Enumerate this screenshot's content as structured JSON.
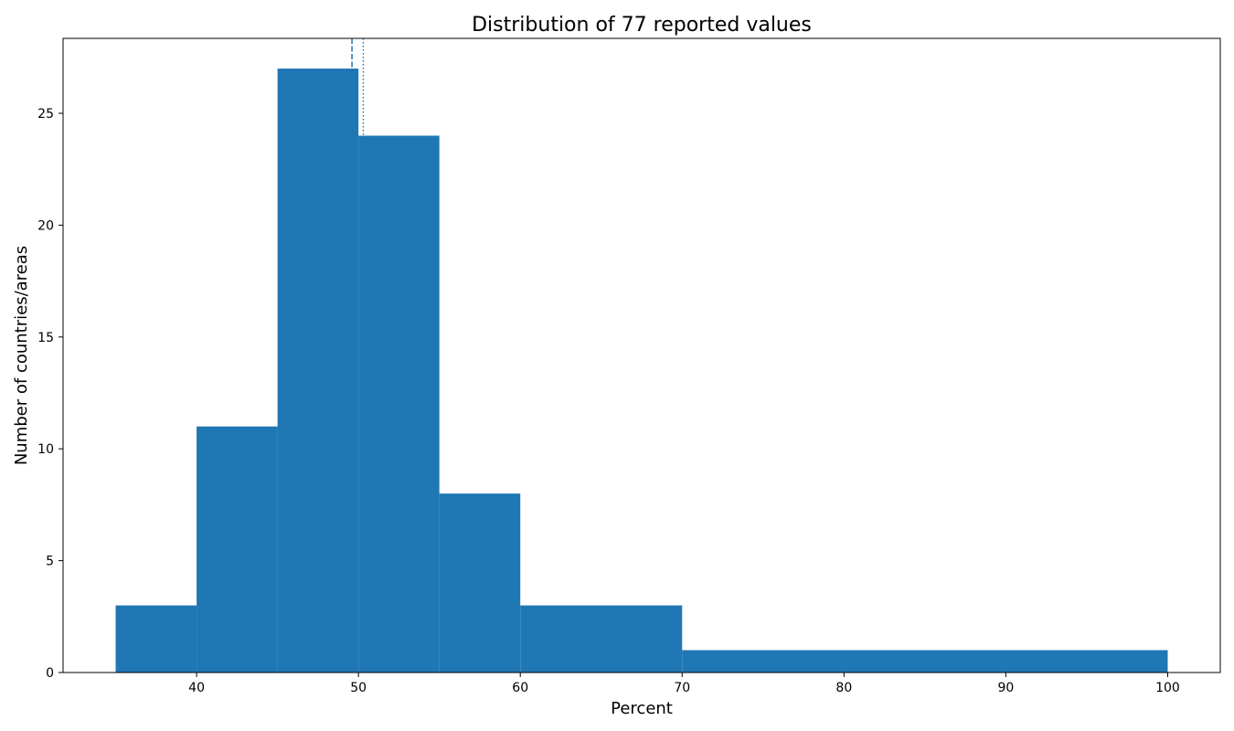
{
  "chart_data": {
    "type": "bar",
    "title": "Distribution of 77 reported values",
    "xlabel": "Percent",
    "ylabel": "Number of countries/areas",
    "bins": [
      {
        "start": 35,
        "end": 40,
        "count": 3
      },
      {
        "start": 40,
        "end": 45,
        "count": 11
      },
      {
        "start": 45,
        "end": 50,
        "count": 27
      },
      {
        "start": 50,
        "end": 55,
        "count": 24
      },
      {
        "start": 55,
        "end": 60,
        "count": 8
      },
      {
        "start": 60,
        "end": 70,
        "count": 3
      },
      {
        "start": 70,
        "end": 100,
        "count": 1
      }
    ],
    "xlim": [
      31.75,
      103.25
    ],
    "ylim": [
      0,
      28.35
    ],
    "xticks": [
      40,
      50,
      60,
      70,
      80,
      90,
      100
    ],
    "yticks": [
      0,
      5,
      10,
      15,
      20,
      25
    ],
    "reference_lines": [
      {
        "x": 49.6,
        "style": "dashed"
      },
      {
        "x": 50.3,
        "style": "dotted"
      }
    ],
    "grid": false,
    "bar_color": "#1f77b4"
  }
}
